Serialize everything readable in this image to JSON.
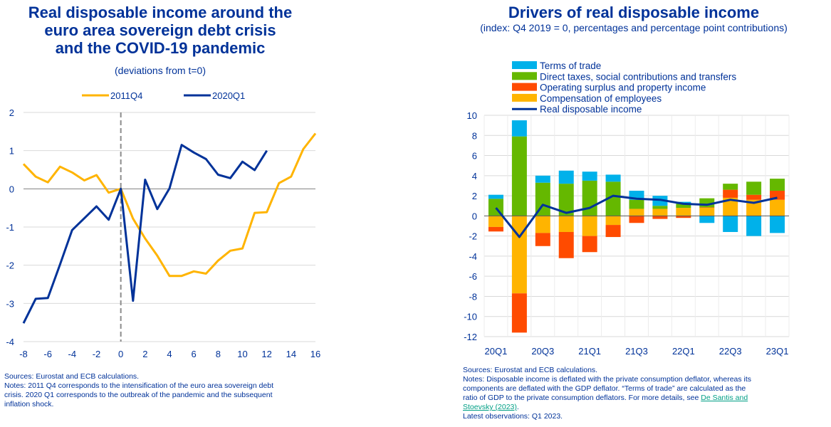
{
  "left": {
    "title_lines": [
      "Real disposable income around the",
      "euro area sovereign debt crisis",
      "and the COVID-19 pandemic"
    ],
    "subtitle": "(deviations from t=0)",
    "sources": "Sources: Eurostat and ECB calculations.",
    "notes_lines": [
      "Notes: 2011 Q4 corresponds to the intensification of the euro area sovereign debt",
      "crisis. 2020 Q1 corresponds to the outbreak of the pandemic and the subsequent",
      "inflation shock."
    ]
  },
  "right": {
    "title": "Drivers of real disposable income",
    "subtitle": "(index: Q4 2019 = 0, percentages and percentage point contributions)",
    "sources": "Sources: Eurostat and ECB calculations.",
    "notes_lines": [
      "Notes: Disposable income is deflated with the private consumption deflator, whereas its",
      "components are deflated with the GDP deflator. “Terms of trade” are calculated as the",
      "ratio of GDP to the private consumption deflators. For more details, see"
    ],
    "link_text_1": "De Santis and",
    "link_text_2": "Stoevsky (2023)",
    "link_suffix": ".",
    "latest": "Latest observations: Q1 2023."
  },
  "chart_data": [
    {
      "type": "line",
      "title": "Real disposable income around the euro area sovereign debt crisis and the COVID-19 pandemic",
      "subtitle": "(deviations from t=0)",
      "xlim": [
        -8,
        16
      ],
      "ylim": [
        -4,
        2
      ],
      "xticks": [
        -8,
        -6,
        -4,
        -2,
        0,
        2,
        4,
        6,
        8,
        10,
        12,
        14,
        16
      ],
      "yticks": [
        -4,
        -3,
        -2,
        -1,
        0,
        1,
        2
      ],
      "legend_position": "top",
      "grid": true,
      "vline_at": 0,
      "series": [
        {
          "name": "2011Q4",
          "color": "#ffb400",
          "x": [
            -8,
            -7,
            -6,
            -5,
            -4,
            -3,
            -2,
            -1,
            0,
            1,
            2,
            3,
            4,
            5,
            6,
            7,
            8,
            9,
            10,
            11,
            12,
            13,
            14,
            15,
            16
          ],
          "y": [
            0.65,
            0.32,
            0.17,
            0.58,
            0.43,
            0.22,
            0.36,
            -0.1,
            0.0,
            -0.78,
            -1.3,
            -1.75,
            -2.28,
            -2.28,
            -2.16,
            -2.22,
            -1.88,
            -1.62,
            -1.56,
            -0.63,
            -0.61,
            0.15,
            0.32,
            1.04,
            1.45
          ]
        },
        {
          "name": "2020Q1",
          "color": "#003299",
          "x": [
            -8,
            -7,
            -6,
            -5,
            -4,
            -3,
            -2,
            -1,
            0,
            1,
            2,
            3,
            4,
            5,
            6,
            7,
            8,
            9,
            10,
            11,
            12
          ],
          "y": [
            -3.52,
            -2.88,
            -2.86,
            -1.98,
            -1.08,
            -0.77,
            -0.46,
            -0.81,
            0.0,
            -2.93,
            0.24,
            -0.53,
            0.01,
            1.15,
            0.95,
            0.78,
            0.37,
            0.28,
            0.71,
            0.49,
            1.0
          ]
        }
      ]
    },
    {
      "type": "bar",
      "stacked": true,
      "title": "Drivers of real disposable income",
      "subtitle": "(index: Q4 2019 = 0, percentages and percentage point contributions)",
      "ylim": [
        -12,
        10
      ],
      "yticks": [
        -12,
        -10,
        -8,
        -6,
        -4,
        -2,
        0,
        2,
        4,
        6,
        8,
        10
      ],
      "grid": true,
      "legend_position": "top",
      "categories": [
        "20Q1",
        "20Q2",
        "20Q3",
        "20Q4",
        "21Q1",
        "21Q2",
        "21Q3",
        "21Q4",
        "22Q1",
        "22Q2",
        "22Q3",
        "22Q4",
        "23Q1"
      ],
      "x_tick_labels": [
        "20Q1",
        "",
        "20Q3",
        "",
        "21Q1",
        "",
        "21Q3",
        "",
        "22Q1",
        "",
        "22Q3",
        "",
        "23Q1"
      ],
      "series": [
        {
          "name": "Compensation of employees",
          "color": "#ffb400",
          "values": [
            -1.1,
            -7.7,
            -1.7,
            -1.6,
            -2.0,
            -0.9,
            0.7,
            0.7,
            0.8,
            0.8,
            1.8,
            1.6,
            1.6
          ]
        },
        {
          "name": "Operating surplus and property income",
          "color": "#ff4b00",
          "values": [
            -0.45,
            -3.9,
            -1.3,
            -2.6,
            -1.6,
            -1.2,
            -0.7,
            -0.3,
            -0.2,
            0.05,
            0.8,
            0.5,
            0.9
          ]
        },
        {
          "name": "Direct taxes, social contributions and transfers",
          "color": "#65b800",
          "values": [
            1.7,
            7.9,
            3.3,
            3.2,
            3.5,
            3.4,
            0.9,
            0.3,
            0.4,
            0.9,
            0.6,
            1.3,
            1.2
          ]
        },
        {
          "name": "Terms of trade",
          "color": "#00b1ea",
          "values": [
            0.4,
            1.6,
            0.7,
            1.3,
            0.9,
            0.7,
            0.9,
            1.0,
            0.2,
            -0.7,
            -1.6,
            -2.0,
            -1.7
          ]
        }
      ],
      "line": {
        "name": "Real disposable income",
        "color": "#003299",
        "values": [
          0.8,
          -2.1,
          1.1,
          0.3,
          0.8,
          2.0,
          1.7,
          1.6,
          1.2,
          1.1,
          1.6,
          1.3,
          1.8
        ]
      },
      "legend_order": [
        "Terms of trade",
        "Direct taxes, social contributions and transfers",
        "Operating surplus and property income",
        "Compensation of employees",
        "Real disposable income"
      ]
    }
  ]
}
